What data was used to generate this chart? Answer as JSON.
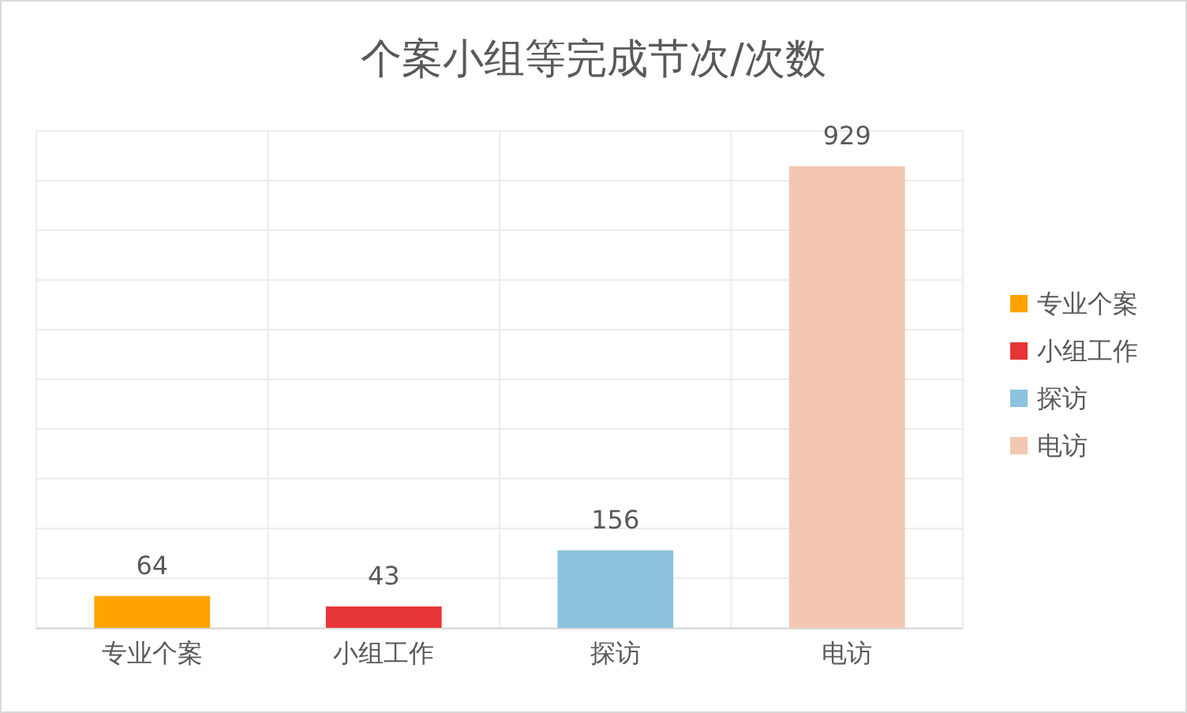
{
  "chart_data": {
    "type": "bar",
    "title": "个案小组等完成节次/次数",
    "categories": [
      "专业个案",
      "小组工作",
      "探访",
      "电访"
    ],
    "series": [
      {
        "name": "专业个案",
        "color": "#ffa200",
        "values": [
          64,
          null,
          null,
          null
        ]
      },
      {
        "name": "小组工作",
        "color": "#e53535",
        "values": [
          null,
          43,
          null,
          null
        ]
      },
      {
        "name": "探访",
        "color": "#8cc3de",
        "values": [
          null,
          null,
          156,
          null
        ]
      },
      {
        "name": "电访",
        "color": "#f3c6b1",
        "values": [
          null,
          null,
          null,
          929
        ]
      }
    ],
    "ylim": [
      0,
      1000
    ],
    "yticks": [
      {
        "value": 0,
        "label": null
      },
      {
        "value": 100,
        "label": null
      },
      {
        "value": 200,
        "label": null
      },
      {
        "value": 300,
        "label": null
      },
      {
        "value": 400,
        "label": null
      },
      {
        "value": 500,
        "label": null
      },
      {
        "value": 600,
        "label": null
      },
      {
        "value": 700,
        "label": null
      },
      {
        "value": 800,
        "label": null
      },
      {
        "value": 900,
        "label": null
      },
      {
        "value": 1000,
        "label": null
      }
    ],
    "tick_labels": "x",
    "grid": true,
    "legend": "right",
    "data_labels": true
  }
}
